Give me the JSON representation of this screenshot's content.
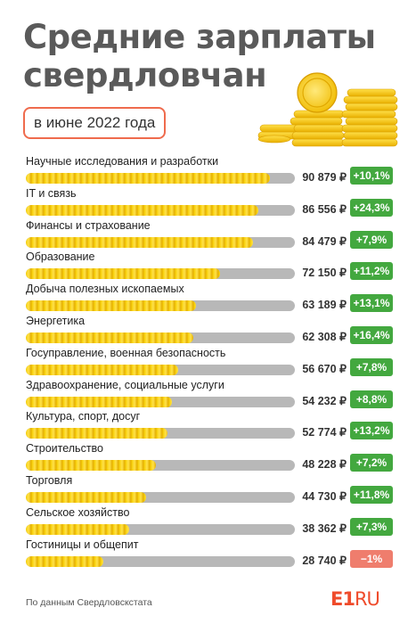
{
  "title_line1": "Средние зарплаты",
  "title_line2": "свердловчан",
  "subtitle": "в июне 2022 года",
  "source": "По данным Свердловскстата",
  "logo": {
    "main": "E1",
    "suffix": "RU"
  },
  "colors": {
    "positive": "#43a83f",
    "negative": "#ef7d6d",
    "bar_fill": "#f7cf08",
    "bar_track": "#b8b8b8",
    "accent": "#ef6b4d"
  },
  "chart_data": {
    "type": "bar",
    "title": "Средние зарплаты свердловчан",
    "subtitle": "в июне 2022 года",
    "unit": "₽",
    "categories": [
      "Научные исследования и разработки",
      "IT и связь",
      "Финансы и страхование",
      "Образование",
      "Добыча полезных ископаемых",
      "Энергетика",
      "Госуправление, военная безопасность",
      "Здравоохранение, социальные услуги",
      "Культура, спорт, досуг",
      "Строительство",
      "Торговля",
      "Сельское хозяйство",
      "Гостиницы и общепит"
    ],
    "values": [
      90879,
      86556,
      84479,
      72150,
      63189,
      62308,
      56670,
      54232,
      52774,
      48228,
      44730,
      38362,
      28740
    ],
    "value_labels": [
      "90 879 ₽",
      "86 556 ₽",
      "84 479 ₽",
      "72 150 ₽",
      "63 189 ₽",
      "62 308 ₽",
      "56 670 ₽",
      "54 232 ₽",
      "52 774 ₽",
      "48 228 ₽",
      "44 730 ₽",
      "38 362 ₽",
      "28 740 ₽"
    ],
    "changes": [
      "+10,1%",
      "+24,3%",
      "+7,9%",
      "+11,2%",
      "+13,1%",
      "+16,4%",
      "+7,8%",
      "+8,8%",
      "+13,2%",
      "+7,2%",
      "+11,8%",
      "+7,3%",
      "−1%"
    ],
    "changes_positive": [
      true,
      true,
      true,
      true,
      true,
      true,
      true,
      true,
      true,
      true,
      true,
      true,
      false
    ],
    "xlim": [
      0,
      100000
    ]
  }
}
